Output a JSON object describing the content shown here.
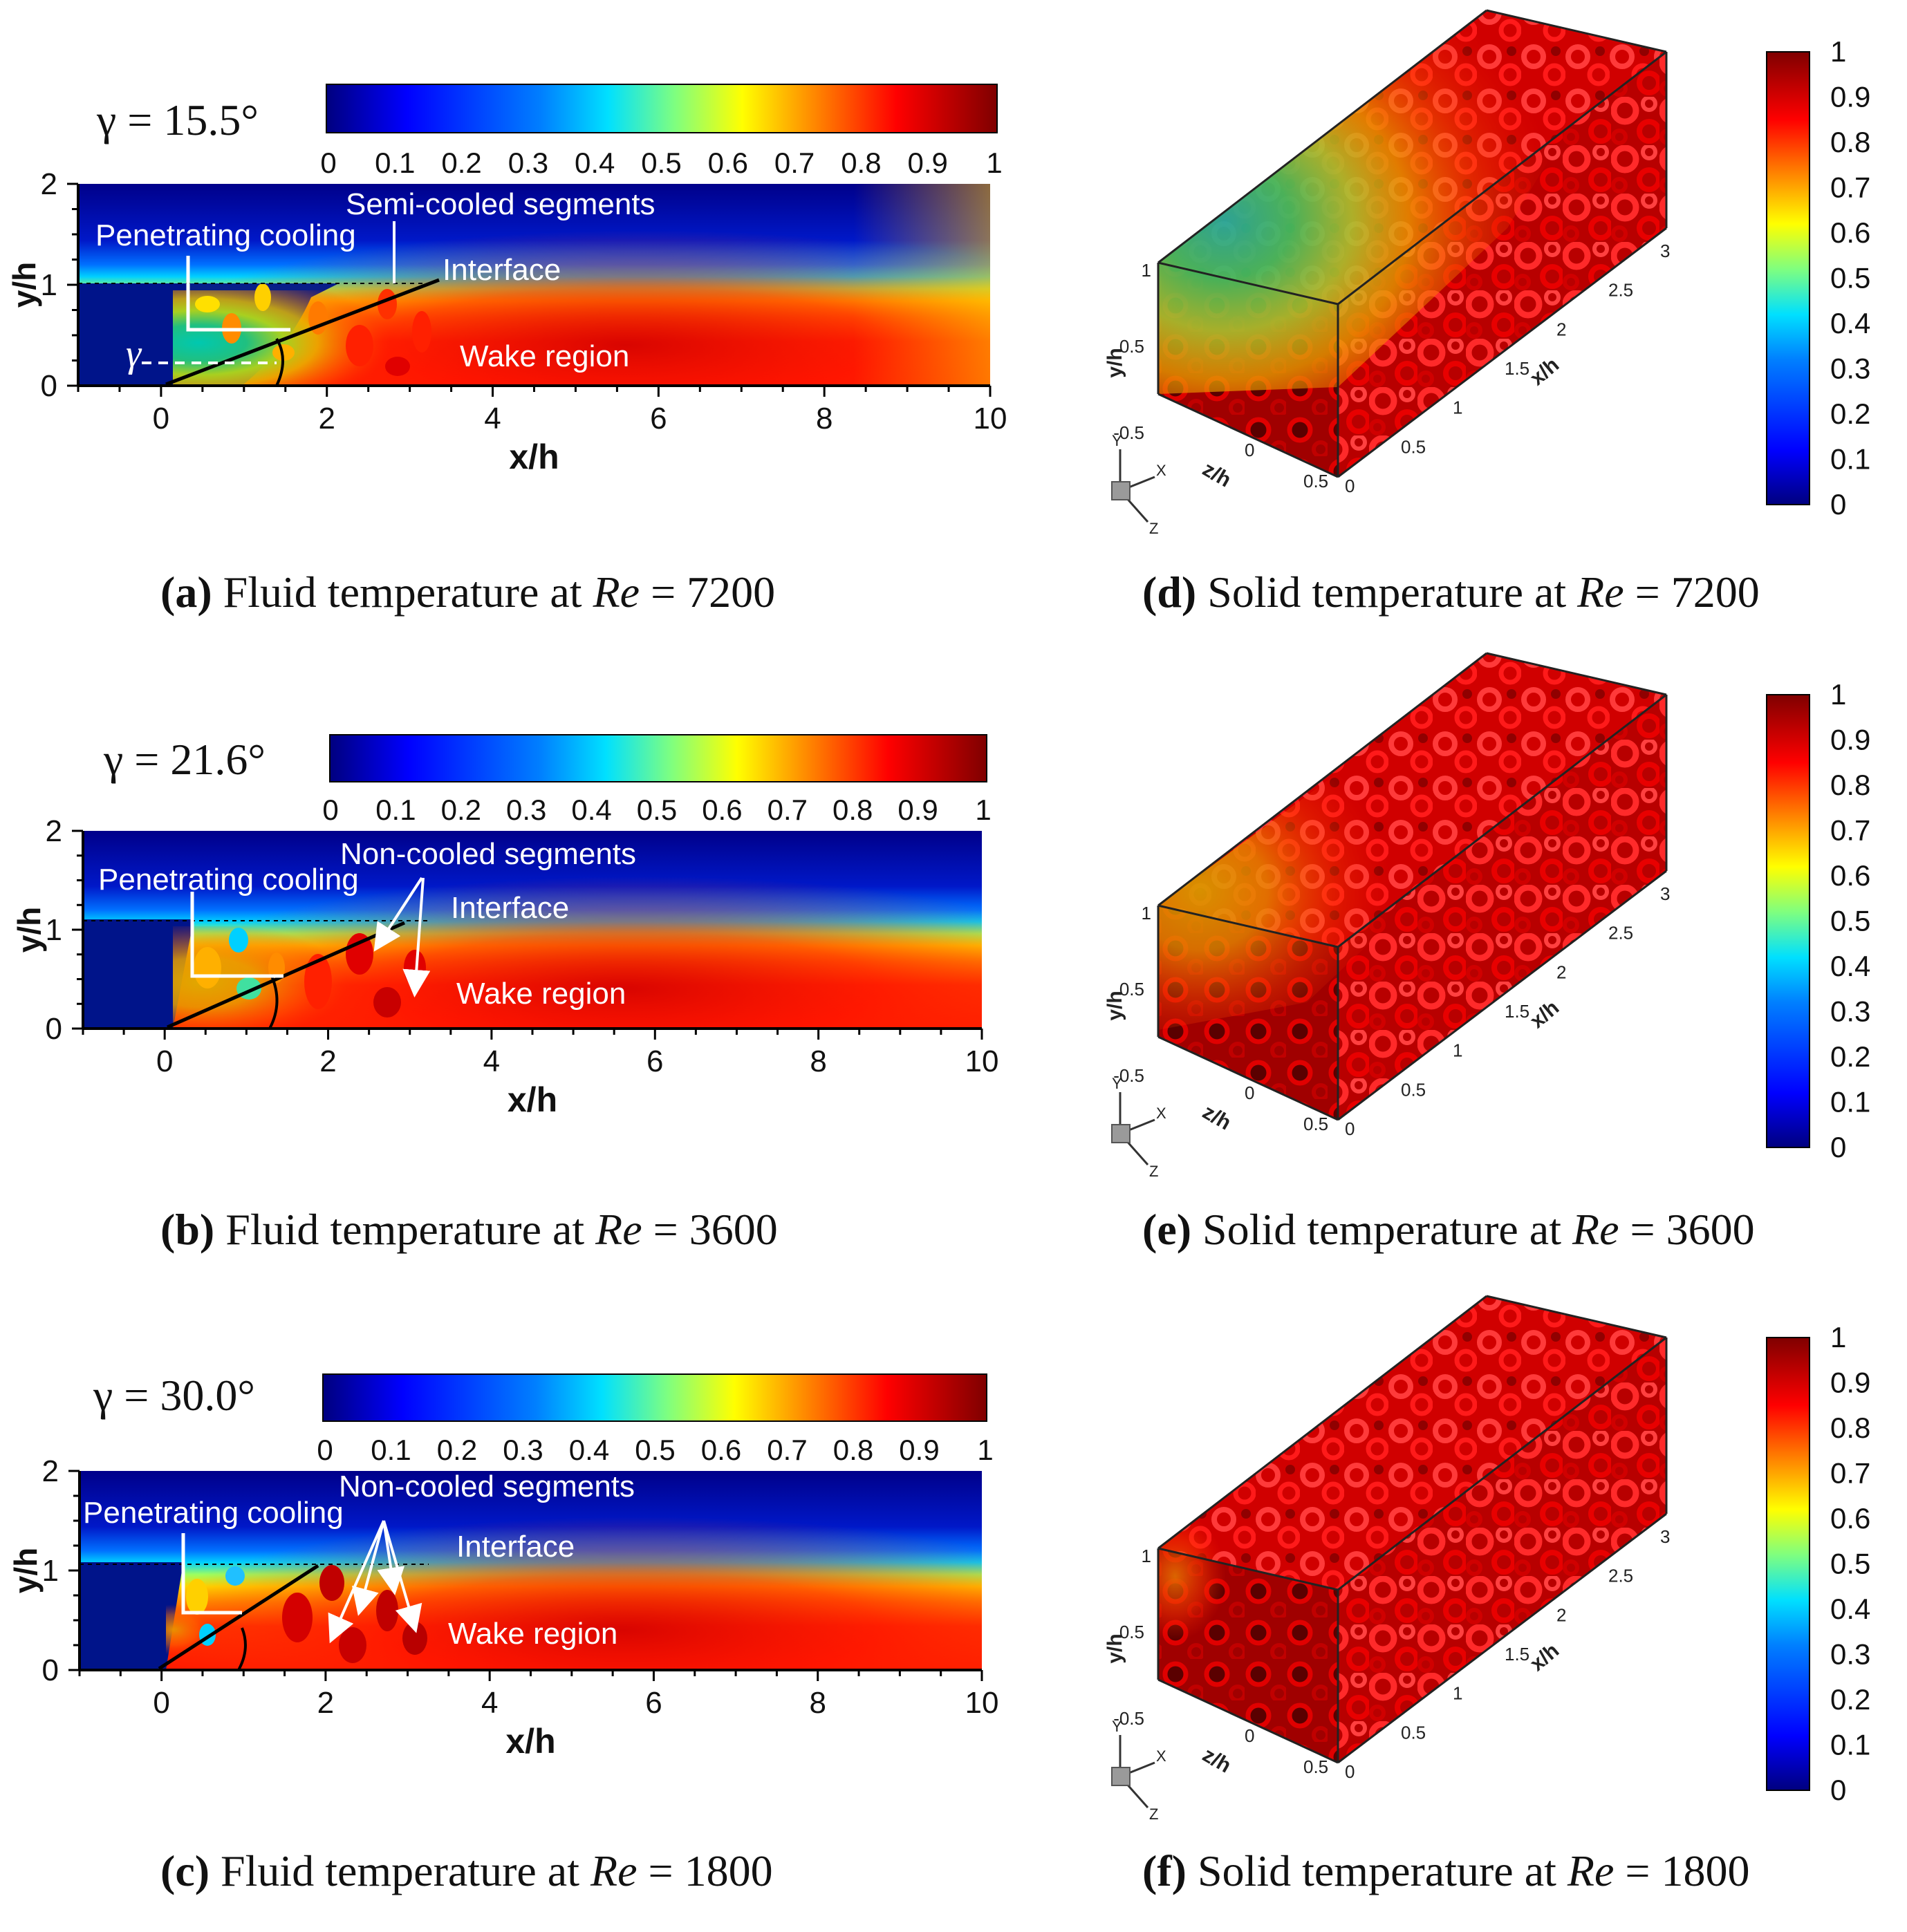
{
  "colorbar_ticks": [
    "0",
    "0.1",
    "0.2",
    "0.3",
    "0.4",
    "0.5",
    "0.6",
    "0.7",
    "0.8",
    "0.9",
    "1"
  ],
  "fluid_axes": {
    "xlabel": "x/h",
    "ylabel": "y/h",
    "x_ticks": [
      "0",
      "2",
      "4",
      "6",
      "8",
      "10"
    ],
    "y_ticks": [
      "0",
      "1",
      "2"
    ],
    "xlim": [
      -1,
      10
    ],
    "ylim": [
      0,
      2
    ]
  },
  "solid_axes": {
    "y_label": "y/h",
    "z_label": "z/h",
    "x_label": "x/h",
    "y_ticks": [
      "1",
      "0.5",
      "-0.5"
    ],
    "z_ticks": [
      "0",
      "0.5"
    ],
    "x_ticks": [
      "0",
      "0.5",
      "1",
      "1.5",
      "2",
      "2.5",
      "3"
    ],
    "triad": [
      "Y",
      "X",
      "Z"
    ]
  },
  "panels": [
    {
      "id": "a",
      "gamma_label": "γ = 15.5°",
      "gamma_deg": 15.5,
      "gamma_symbol": "γ",
      "annotations": {
        "segments": "Semi-cooled segments",
        "penetrating": "Penetrating cooling",
        "interface": "Interface",
        "wake": "Wake region"
      },
      "caption": {
        "letter": "(a)",
        "text": "Fluid temperature at",
        "var": "Re",
        "value": "= 7200"
      }
    },
    {
      "id": "b",
      "gamma_label": "γ = 21.6°",
      "gamma_deg": 21.6,
      "annotations": {
        "segments": "Non-cooled segments",
        "penetrating": "Penetrating cooling",
        "interface": "Interface",
        "wake": "Wake region"
      },
      "caption": {
        "letter": "(b)",
        "text": "Fluid temperature at",
        "var": "Re",
        "value": "= 3600"
      }
    },
    {
      "id": "c",
      "gamma_label": "γ = 30.0°",
      "gamma_deg": 30.0,
      "annotations": {
        "segments": "Non-cooled segments",
        "penetrating": "Penetrating cooling",
        "interface": "Interface",
        "wake": "Wake region"
      },
      "caption": {
        "letter": "(c)",
        "text": "Fluid temperature at",
        "var": "Re",
        "value": "= 1800"
      }
    },
    {
      "id": "d",
      "caption": {
        "letter": "(d)",
        "text": "Solid temperature at",
        "var": "Re",
        "value": "= 7200"
      }
    },
    {
      "id": "e",
      "caption": {
        "letter": "(e)",
        "text": "Solid temperature at",
        "var": "Re",
        "value": "= 3600"
      }
    },
    {
      "id": "f",
      "caption": {
        "letter": "(f)",
        "text": "Solid temperature at",
        "var": "Re",
        "value": "= 1800"
      }
    }
  ],
  "colors": {
    "jet": [
      "#00007f",
      "#0000ff",
      "#007fff",
      "#00ffff",
      "#7fff7f",
      "#ffff00",
      "#ff7f00",
      "#ff0000",
      "#7f0000"
    ],
    "annotation": "#ffffff",
    "axis": "#000000"
  }
}
